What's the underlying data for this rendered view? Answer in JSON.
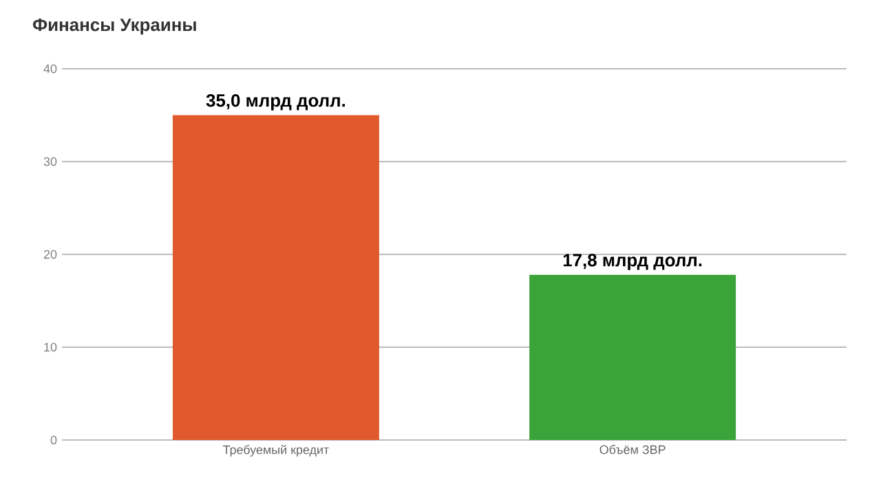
{
  "chart_data": {
    "type": "bar",
    "title": "Финансы Украины",
    "categories": [
      "Требуемый кредит",
      "Объём ЗВР"
    ],
    "values": [
      35.0,
      17.8
    ],
    "colors": [
      "#e05a2e",
      "#3aa33a"
    ],
    "value_labels": [
      "35,0 млрд долл.",
      "17,8 млрд долл."
    ],
    "ylim": [
      0,
      40
    ],
    "yticks": [
      0,
      10,
      20,
      30,
      40
    ],
    "grid": "y"
  }
}
